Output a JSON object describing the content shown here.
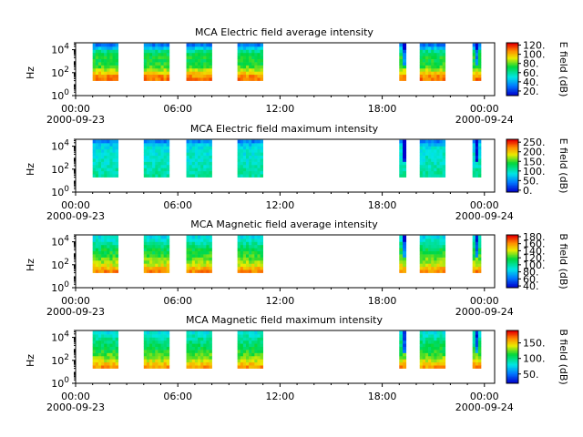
{
  "colors": {
    "background": "#ffffff",
    "axes": "#000000"
  },
  "chart_data": [
    {
      "type": "heatmap",
      "title": "MCA  Electric field average intensity",
      "ylabel": "Hz",
      "xlabel": "",
      "x_ticks": [
        "00:00",
        "06:00",
        "12:00",
        "18:00",
        "00:00"
      ],
      "x_dates": [
        "2000-09-23",
        "2000-09-24"
      ],
      "y_ticks": [
        "10^0",
        "10^2",
        "10^4"
      ],
      "y_range_hz": [
        1,
        40000
      ],
      "y_scale": "log",
      "colorbar": {
        "label": "E field (dB)",
        "ticks": [
          "20.",
          "40.",
          "60.",
          "80.",
          "100.",
          "120."
        ],
        "range": [
          10,
          125
        ]
      },
      "colormap": "rainbow",
      "data_segments_hours": [
        [
          1.0,
          2.5
        ],
        [
          4.0,
          5.5
        ],
        [
          6.5,
          8.0
        ],
        [
          9.5,
          11.0
        ],
        [
          19.0,
          19.4
        ],
        [
          20.2,
          21.7
        ],
        [
          23.3,
          23.8
        ]
      ],
      "x_range_hours": [
        0,
        24.6
      ],
      "grid": false
    },
    {
      "type": "heatmap",
      "title": "MCA  Electric field maximum intensity",
      "ylabel": "Hz",
      "xlabel": "",
      "x_ticks": [
        "00:00",
        "06:00",
        "12:00",
        "18:00",
        "00:00"
      ],
      "x_dates": [
        "2000-09-23",
        "2000-09-24"
      ],
      "y_ticks": [
        "10^0",
        "10^2",
        "10^4"
      ],
      "y_range_hz": [
        1,
        40000
      ],
      "y_scale": "log",
      "colorbar": {
        "label": "E field (dB)",
        "ticks": [
          "0.",
          "50.",
          "100.",
          "150.",
          "200.",
          "250."
        ],
        "range": [
          -10,
          265
        ]
      },
      "colormap": "rainbow",
      "data_segments_hours": [
        [
          1.0,
          2.5
        ],
        [
          4.0,
          5.5
        ],
        [
          6.5,
          8.0
        ],
        [
          9.5,
          11.0
        ],
        [
          19.0,
          19.4
        ],
        [
          20.2,
          21.7
        ],
        [
          23.3,
          23.8
        ]
      ],
      "x_range_hours": [
        0,
        24.6
      ],
      "grid": false
    },
    {
      "type": "heatmap",
      "title": "MCA  Magnetic field average intensity",
      "ylabel": "Hz",
      "xlabel": "",
      "x_ticks": [
        "00:00",
        "06:00",
        "12:00",
        "18:00",
        "00:00"
      ],
      "x_dates": [
        "2000-09-23",
        "2000-09-24"
      ],
      "y_ticks": [
        "10^0",
        "10^2",
        "10^4"
      ],
      "y_range_hz": [
        1,
        40000
      ],
      "y_scale": "log",
      "colorbar": {
        "label": "B field (dB)",
        "ticks": [
          "40.",
          "60.",
          "80.",
          "100.",
          "120.",
          "140.",
          "160.",
          "180."
        ],
        "range": [
          35,
          185
        ]
      },
      "colormap": "rainbow",
      "data_segments_hours": [
        [
          1.0,
          2.5
        ],
        [
          4.0,
          5.5
        ],
        [
          6.5,
          8.0
        ],
        [
          9.5,
          11.0
        ],
        [
          19.0,
          19.4
        ],
        [
          20.2,
          21.7
        ],
        [
          23.3,
          23.8
        ]
      ],
      "x_range_hours": [
        0,
        24.6
      ],
      "grid": false
    },
    {
      "type": "heatmap",
      "title": "MCA  Magnetic field maximum intensity",
      "ylabel": "Hz",
      "xlabel": "",
      "x_ticks": [
        "00:00",
        "06:00",
        "12:00",
        "18:00",
        "00:00"
      ],
      "x_dates": [
        "2000-09-23",
        "2000-09-24"
      ],
      "y_ticks": [
        "10^0",
        "10^2",
        "10^4"
      ],
      "y_range_hz": [
        1,
        40000
      ],
      "y_scale": "log",
      "colorbar": {
        "label": "B field (dB)",
        "ticks": [
          "50.",
          "100.",
          "150."
        ],
        "range": [
          20,
          190
        ]
      },
      "colormap": "rainbow",
      "data_segments_hours": [
        [
          1.0,
          2.5
        ],
        [
          4.0,
          5.5
        ],
        [
          6.5,
          8.0
        ],
        [
          9.5,
          11.0
        ],
        [
          19.0,
          19.4
        ],
        [
          20.2,
          21.7
        ],
        [
          23.3,
          23.8
        ]
      ],
      "x_range_hours": [
        0,
        24.6
      ],
      "grid": false
    }
  ]
}
